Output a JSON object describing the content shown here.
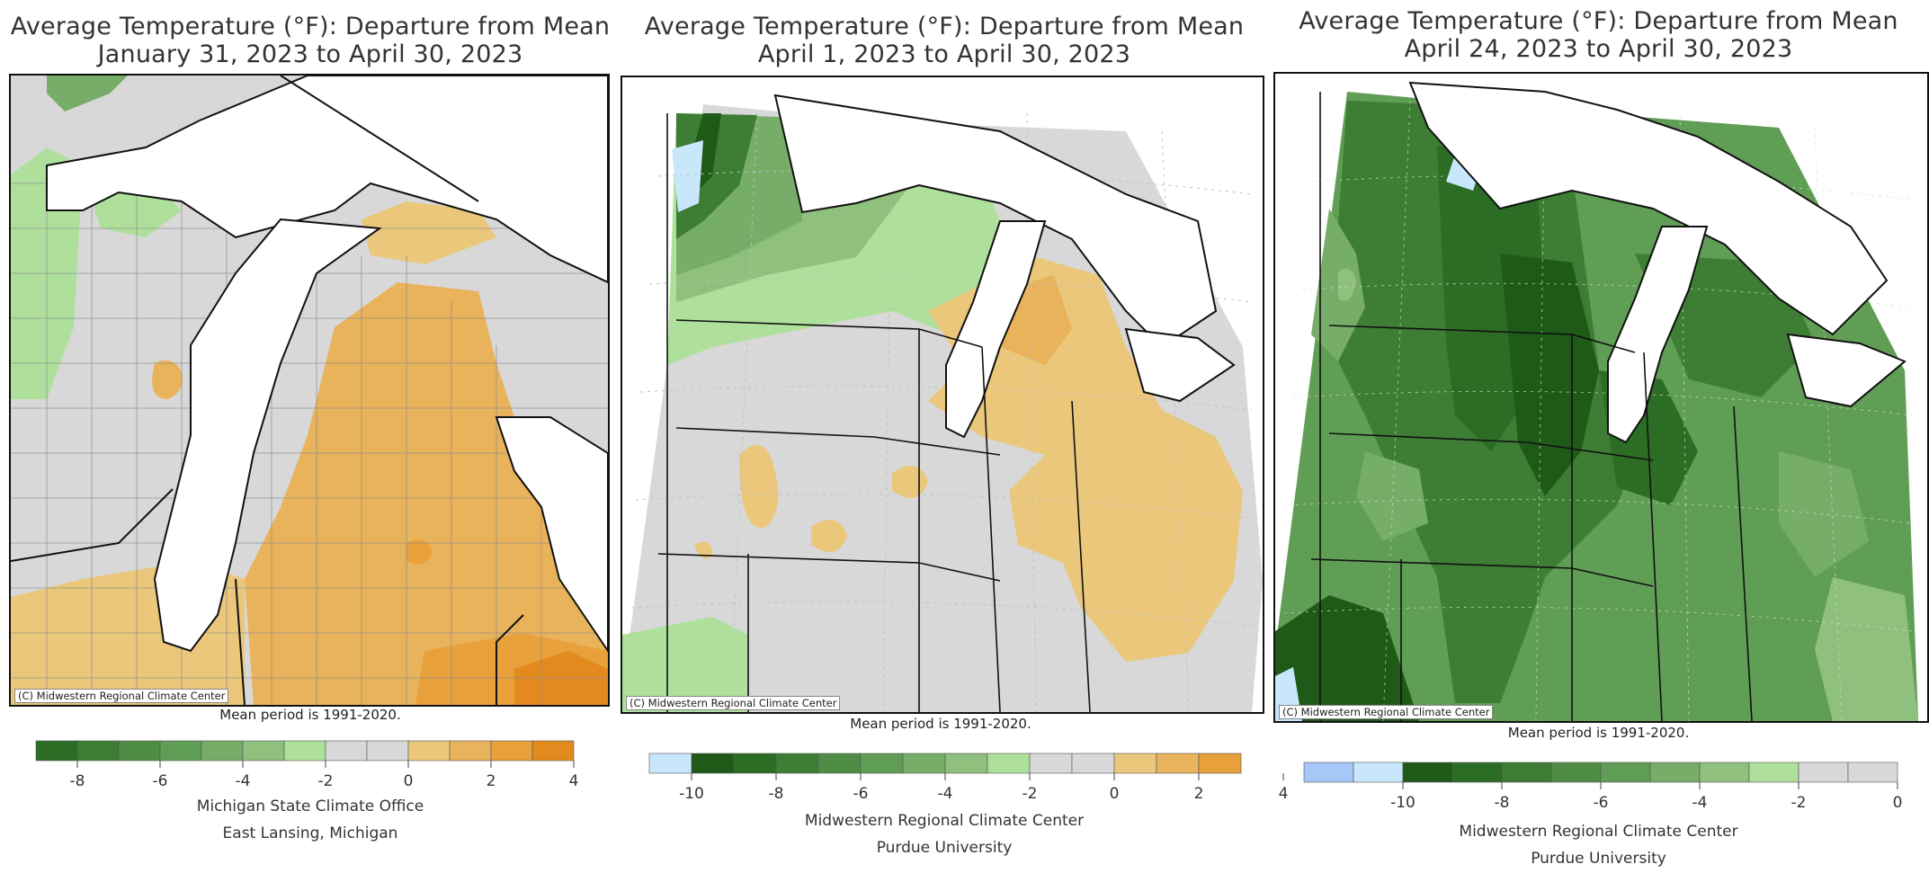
{
  "colors": {
    "dg3": "#1f5a19",
    "dg2": "#2c6d25",
    "dg1": "#3d7d34",
    "g5": "#4f8d45",
    "g4": "#609d55",
    "g3": "#76ad68",
    "g2": "#8fc07e",
    "g1": "#aee09b",
    "n": "#d8d8d8",
    "o1": "#eac77a",
    "o2": "#e9b35b",
    "o3": "#e7a03a",
    "o4": "#e38a1e",
    "lb": "#c8e7fb",
    "lb2": "#a6c8f8",
    "water": "#ffffff"
  },
  "panels": [
    {
      "title_line1": "Average Temperature (°F): Departure from Mean",
      "title_line2": "January 31, 2023 to April 30, 2023",
      "credit": "(C) Midwestern Regional Climate Center",
      "mean_period": "Mean period is 1991-2020.",
      "footer_line1": "Michigan State Climate Office",
      "footer_line2": "East Lansing, Michigan",
      "legend": {
        "colors": [
          "dg2",
          "dg1",
          "g5",
          "g4",
          "g3",
          "g2",
          "g1",
          "n",
          "n",
          "o1",
          "o2",
          "o3",
          "o4"
        ],
        "ticks": [
          "-8",
          "-6",
          "-4",
          "-2",
          "0",
          "2",
          "4"
        ]
      }
    },
    {
      "title_line1": "Average Temperature (°F): Departure from Mean",
      "title_line2": "April 1, 2023 to April 30, 2023",
      "credit": "(C) Midwestern Regional Climate Center",
      "mean_period": "Mean period is 1991-2020.",
      "footer_line1": "Midwestern Regional Climate Center",
      "footer_line2": "Purdue University",
      "legend": {
        "colors": [
          "lb",
          "dg3",
          "dg2",
          "dg1",
          "g5",
          "g4",
          "g3",
          "g2",
          "g1",
          "n",
          "n",
          "o1",
          "o2",
          "o3"
        ],
        "ticks": [
          "-10",
          "-8",
          "-6",
          "-4",
          "-2",
          "0",
          "2",
          "4"
        ]
      }
    },
    {
      "title_line1": "Average Temperature (°F): Departure from Mean",
      "title_line2": "April 24, 2023 to April 30, 2023",
      "credit": "(C) Midwestern Regional Climate Center",
      "mean_period": "Mean period is 1991-2020.",
      "footer_line1": "Midwestern Regional Climate Center",
      "footer_line2": "Purdue University",
      "legend": {
        "colors": [
          "lb2",
          "lb",
          "dg3",
          "dg2",
          "dg1",
          "g5",
          "g4",
          "g3",
          "g2",
          "g1",
          "n",
          "n"
        ],
        "ticks": [
          "-10",
          "-8",
          "-6",
          "-4",
          "-2",
          "0"
        ]
      }
    }
  ]
}
